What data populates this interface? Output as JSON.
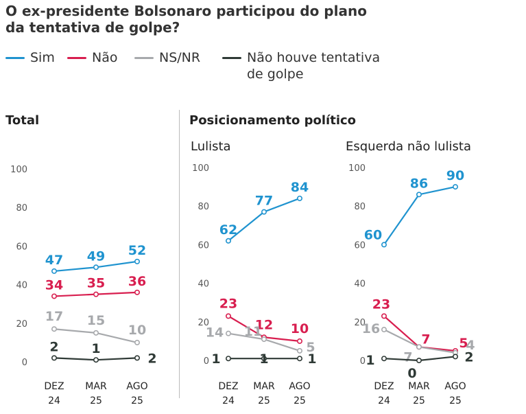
{
  "title": "O ex-presidente Bolsonaro participou do plano da tentativa de golpe?",
  "legend": [
    {
      "label": "Sim",
      "color": "#1f93cf"
    },
    {
      "label": "Não",
      "color": "#d81e4f"
    },
    {
      "label": "NS/NR",
      "color": "#a7a9ac"
    },
    {
      "label": "Não houve tentativa de golpe",
      "color": "#2f3a36"
    }
  ],
  "sections": {
    "total": "Total",
    "positioning": "Posicionamento político"
  },
  "chart_data": [
    {
      "type": "line",
      "title": "Total",
      "categories": [
        "DEZ 24",
        "MAR 25",
        "AGO 25"
      ],
      "ylim": [
        0,
        100
      ],
      "yticks": [
        0,
        20,
        40,
        60,
        80,
        100
      ],
      "series": [
        {
          "name": "Sim",
          "values": [
            47,
            49,
            52
          ]
        },
        {
          "name": "Não",
          "values": [
            34,
            35,
            36
          ]
        },
        {
          "name": "NS/NR",
          "values": [
            17,
            15,
            10
          ]
        },
        {
          "name": "Não houve tentativa de golpe",
          "values": [
            2,
            1,
            2
          ]
        }
      ]
    },
    {
      "type": "line",
      "title": "Lulista",
      "categories": [
        "DEZ 24",
        "MAR 25",
        "AGO 25"
      ],
      "ylim": [
        0,
        100
      ],
      "yticks": [
        0,
        20,
        40,
        60,
        80,
        100
      ],
      "series": [
        {
          "name": "Sim",
          "values": [
            62,
            77,
            84
          ]
        },
        {
          "name": "Não",
          "values": [
            23,
            12,
            10
          ]
        },
        {
          "name": "NS/NR",
          "values": [
            14,
            11,
            5
          ]
        },
        {
          "name": "Não houve tentativa de golpe",
          "values": [
            1,
            1,
            1
          ]
        }
      ]
    },
    {
      "type": "line",
      "title": "Esquerda não lulista",
      "categories": [
        "DEZ 24",
        "MAR 25",
        "AGO 25"
      ],
      "ylim": [
        0,
        100
      ],
      "yticks": [
        0,
        20,
        40,
        60,
        80,
        100
      ],
      "series": [
        {
          "name": "Sim",
          "values": [
            60,
            86,
            90
          ]
        },
        {
          "name": "Não",
          "values": [
            23,
            7,
            5
          ]
        },
        {
          "name": "NS/NR",
          "values": [
            16,
            7,
            4
          ]
        },
        {
          "name": "Não houve tentativa de golpe",
          "values": [
            1,
            0,
            2
          ]
        }
      ]
    }
  ]
}
